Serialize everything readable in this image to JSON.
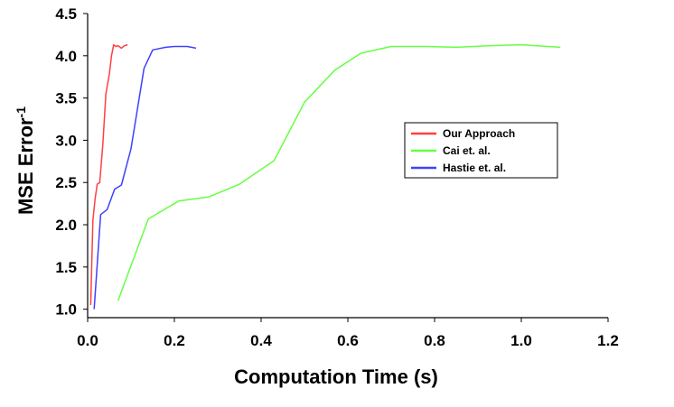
{
  "chart_data": {
    "type": "line",
    "title": "",
    "xlabel": "Computation Time (s)",
    "ylabel_main": "MSE Error",
    "ylabel_sup": "-1",
    "xlim": [
      0.0,
      1.2
    ],
    "ylim": [
      0.9,
      4.5
    ],
    "x_ticks": [
      "0.0",
      "0.2",
      "0.4",
      "0.6",
      "0.8",
      "1.0",
      "1.2"
    ],
    "y_ticks": [
      "1.0",
      "1.5",
      "2.0",
      "2.5",
      "3.0",
      "3.5",
      "4.0",
      "4.5"
    ],
    "grid": false,
    "legend_position": "right",
    "series": [
      {
        "name": "Our Approach",
        "color": "#ff4040",
        "x": [
          0.007,
          0.012,
          0.017,
          0.022,
          0.028,
          0.035,
          0.042,
          0.05,
          0.055,
          0.06,
          0.065,
          0.07,
          0.078,
          0.085,
          0.092
        ],
        "y": [
          1.05,
          2.05,
          2.3,
          2.48,
          2.5,
          2.95,
          3.55,
          3.78,
          4.0,
          4.13,
          4.11,
          4.12,
          4.09,
          4.12,
          4.13
        ]
      },
      {
        "name": "Cai et. al.",
        "color": "#66ff44",
        "x": [
          0.07,
          0.14,
          0.21,
          0.28,
          0.35,
          0.43,
          0.5,
          0.57,
          0.63,
          0.7,
          0.78,
          0.85,
          0.93,
          1.0,
          1.09
        ],
        "y": [
          1.1,
          2.07,
          2.28,
          2.33,
          2.48,
          2.76,
          3.45,
          3.83,
          4.03,
          4.11,
          4.11,
          4.1,
          4.12,
          4.13,
          4.1
        ]
      },
      {
        "name": "Hastie et. al.",
        "color": "#4040ff",
        "x": [
          0.015,
          0.03,
          0.045,
          0.062,
          0.078,
          0.1,
          0.13,
          0.15,
          0.18,
          0.2,
          0.23,
          0.25
        ],
        "y": [
          1.0,
          2.12,
          2.18,
          2.42,
          2.47,
          2.9,
          3.85,
          4.07,
          4.1,
          4.11,
          4.11,
          4.09
        ]
      }
    ]
  }
}
